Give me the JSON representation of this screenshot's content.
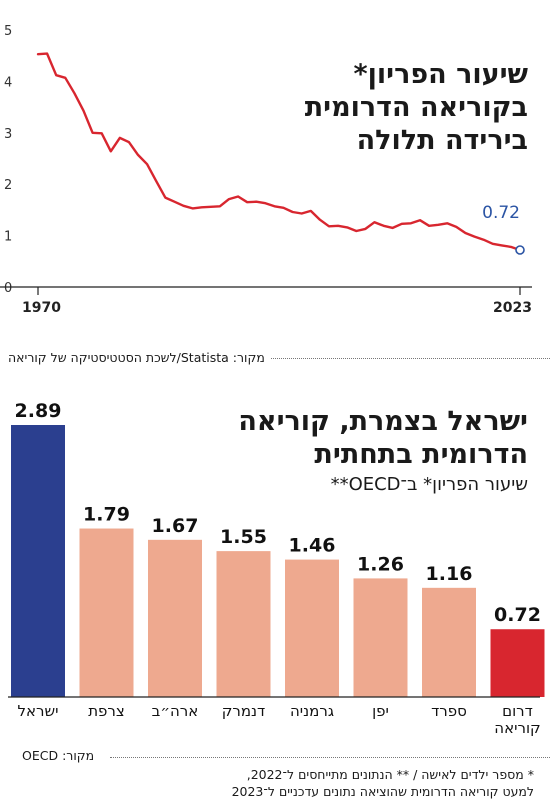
{
  "chart_data": [
    {
      "type": "line",
      "title": "שיעור הפריון* בקוריאה הדרומית בירידה תלולה",
      "title_lines": [
        "שיעור הפריון*",
        "בקוריאה הדרומית",
        "בירידה תלולה"
      ],
      "x_tick_labels": [
        "1970",
        "2023"
      ],
      "y_tick_labels": [
        "0",
        "1",
        "2",
        "3",
        "4",
        "5"
      ],
      "ylim": [
        0,
        5
      ],
      "xlim": [
        1970,
        2023
      ],
      "grid": false,
      "annotation": "0.72",
      "color": "#d8262f",
      "marker_color": "#2b54a4",
      "x": [
        1970,
        1971,
        1972,
        1973,
        1974,
        1975,
        1976,
        1977,
        1978,
        1979,
        1980,
        1981,
        1982,
        1983,
        1984,
        1985,
        1986,
        1987,
        1988,
        1989,
        1990,
        1991,
        1992,
        1993,
        1994,
        1995,
        1996,
        1997,
        1998,
        1999,
        2000,
        2001,
        2002,
        2003,
        2004,
        2005,
        2006,
        2007,
        2008,
        2009,
        2010,
        2011,
        2012,
        2013,
        2014,
        2015,
        2016,
        2017,
        2018,
        2019,
        2020,
        2021,
        2022,
        2023
      ],
      "y": [
        4.53,
        4.54,
        4.12,
        4.07,
        3.77,
        3.43,
        3.0,
        2.99,
        2.64,
        2.9,
        2.82,
        2.57,
        2.39,
        2.06,
        1.74,
        1.66,
        1.58,
        1.53,
        1.55,
        1.56,
        1.57,
        1.71,
        1.76,
        1.65,
        1.66,
        1.63,
        1.57,
        1.54,
        1.46,
        1.43,
        1.48,
        1.31,
        1.18,
        1.19,
        1.16,
        1.09,
        1.13,
        1.26,
        1.19,
        1.15,
        1.23,
        1.24,
        1.3,
        1.19,
        1.21,
        1.24,
        1.17,
        1.05,
        0.98,
        0.92,
        0.84,
        0.81,
        0.78,
        0.72
      ]
    },
    {
      "type": "bar",
      "title": "ישראל בצמרת, קוריאה הדרומית בתחתית",
      "title_lines": [
        "ישראל בצמרת, קוריאה",
        "הדרומית בתחתית"
      ],
      "subtitle": "שיעור הפריון* ב־OECD**",
      "categories": [
        "ישראל",
        "צרפת",
        "ארה״ב",
        "דנמרק",
        "גרמניה",
        "יפן",
        "ספרד",
        "דרום קוריאה"
      ],
      "category_lines": [
        [
          "ישראל"
        ],
        [
          "צרפת"
        ],
        [
          "ארה״ב"
        ],
        [
          "דנמרק"
        ],
        [
          "גרמניה"
        ],
        [
          "יפן"
        ],
        [
          "ספרד"
        ],
        [
          "דרום",
          "קוריאה"
        ]
      ],
      "values": [
        2.89,
        1.79,
        1.67,
        1.55,
        1.46,
        1.26,
        1.16,
        0.72
      ],
      "value_labels": [
        "2.89",
        "1.79",
        "1.67",
        "1.55",
        "1.46",
        "1.26",
        "1.16",
        "0.72"
      ],
      "bar_colors": [
        "#2b3f8f",
        "#eea98f",
        "#eea98f",
        "#eea98f",
        "#eea98f",
        "#eea98f",
        "#eea98f",
        "#d8262f"
      ],
      "ylim": [
        0,
        2.89
      ]
    }
  ],
  "source_line": "מקור: Statista/לשכת הסטטיסטיקה של קוריאה",
  "source_bar": "מקור: OECD",
  "footnote_1": "* מספר ילדים לאישה  /  ** הנתונים מתייחסים ל־2022,",
  "footnote_2": "למעט קוריאה הדרומית שהוציאה נתונים עדכניים ל־2023"
}
